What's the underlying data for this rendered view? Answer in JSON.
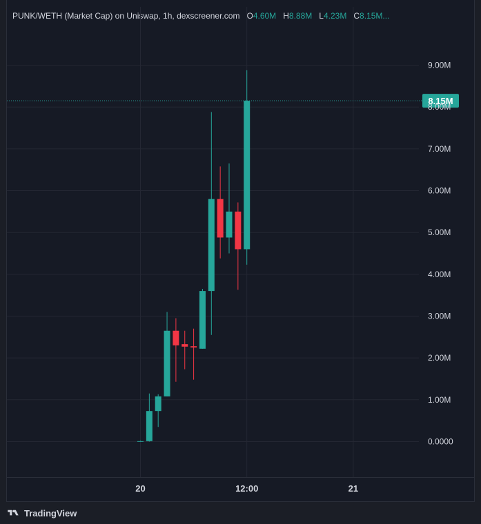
{
  "legend": {
    "title": "PUNK/WETH (Market Cap) on Uniswap, 1h, dexscreener.com",
    "o_label": "O",
    "o_value": "4.60M",
    "h_label": "H",
    "h_value": "8.88M",
    "l_label": "L",
    "l_value": "4.23M",
    "c_label": "C",
    "c_value": "8.15M..."
  },
  "footer": {
    "brand": "TradingView"
  },
  "colors": {
    "up": "#26a69a",
    "down": "#f23645",
    "grid": "#242733",
    "axis_text": "#d1d4dc",
    "price_tag": "#26a69a"
  },
  "chart_data": {
    "type": "candlestick",
    "title": "PUNK/WETH (Market Cap) on Uniswap, 1h, dexscreener.com",
    "y_unit": "M",
    "ylim": [
      -0.85,
      9.9
    ],
    "y_ticks": [
      0,
      1,
      2,
      3,
      4,
      5,
      6,
      7,
      8,
      9
    ],
    "y_tick_labels": [
      "0.0000",
      "1.00M",
      "2.00M",
      "3.00M",
      "4.00M",
      "5.00M",
      "6.00M",
      "7.00M",
      "8.00M",
      "9.00M"
    ],
    "x_ticks": [
      {
        "label": "20",
        "hour": 0
      },
      {
        "label": "12:00",
        "hour": 12
      },
      {
        "label": "21",
        "hour": 24
      }
    ],
    "last_price": 8.15,
    "last_price_label": "8.15M",
    "candles": [
      {
        "hour": 0,
        "open": 0.0,
        "high": 0.02,
        "low": 0.0,
        "close": 0.01
      },
      {
        "hour": 1,
        "open": 0.01,
        "high": 1.15,
        "low": 0.0,
        "close": 0.73
      },
      {
        "hour": 2,
        "open": 0.73,
        "high": 1.13,
        "low": 0.35,
        "close": 1.08
      },
      {
        "hour": 3,
        "open": 1.08,
        "high": 3.1,
        "low": 1.08,
        "close": 2.65
      },
      {
        "hour": 4,
        "open": 2.65,
        "high": 2.95,
        "low": 1.43,
        "close": 2.3
      },
      {
        "hour": 5,
        "open": 2.33,
        "high": 2.65,
        "low": 1.73,
        "close": 2.27
      },
      {
        "hour": 6,
        "open": 2.28,
        "high": 2.7,
        "low": 1.48,
        "close": 2.25
      },
      {
        "hour": 7,
        "open": 2.22,
        "high": 3.65,
        "low": 2.22,
        "close": 3.6
      },
      {
        "hour": 8,
        "open": 3.6,
        "high": 7.88,
        "low": 2.55,
        "close": 5.8
      },
      {
        "hour": 9,
        "open": 5.8,
        "high": 6.58,
        "low": 4.38,
        "close": 4.88
      },
      {
        "hour": 10,
        "open": 4.88,
        "high": 6.65,
        "low": 4.5,
        "close": 5.5
      },
      {
        "hour": 11,
        "open": 5.5,
        "high": 5.72,
        "low": 3.63,
        "close": 4.6
      },
      {
        "hour": 12,
        "open": 4.6,
        "high": 8.88,
        "low": 4.23,
        "close": 8.15
      }
    ]
  }
}
